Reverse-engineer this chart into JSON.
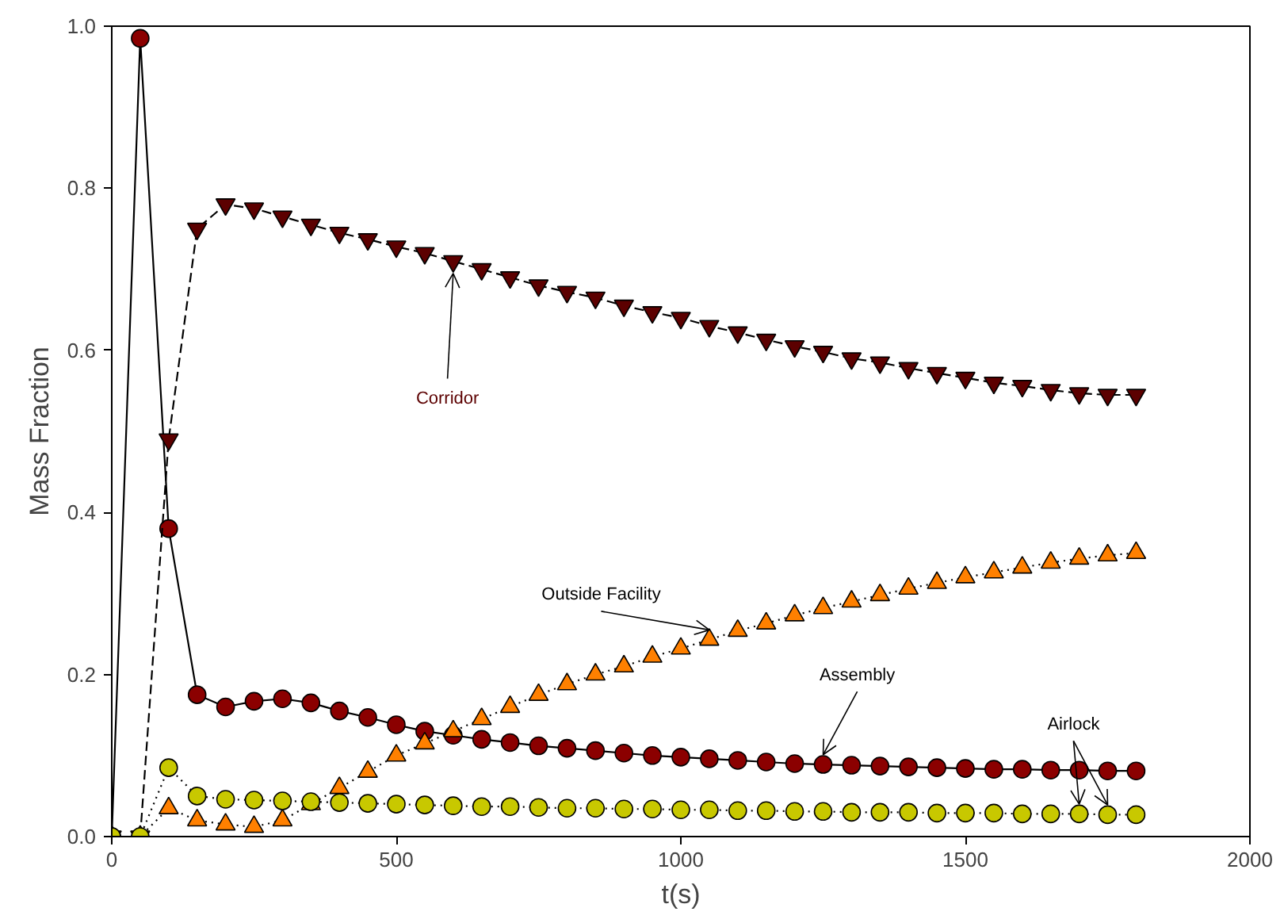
{
  "chart_data": {
    "type": "line",
    "xlabel": "t(s)",
    "ylabel": "Mass Fraction",
    "x": [
      0,
      50,
      100,
      150,
      200,
      250,
      300,
      350,
      400,
      450,
      500,
      550,
      600,
      650,
      700,
      750,
      800,
      850,
      900,
      950,
      1000,
      1050,
      1100,
      1150,
      1200,
      1250,
      1300,
      1350,
      1400,
      1450,
      1500,
      1550,
      1600,
      1650,
      1700,
      1750,
      1800
    ],
    "series": [
      {
        "name": "Assembly",
        "color": "#8b0000",
        "marker": "circle",
        "line_style": "solid",
        "values": [
          0,
          0.985,
          0.38,
          0.175,
          0.16,
          0.167,
          0.17,
          0.165,
          0.155,
          0.147,
          0.138,
          0.13,
          0.125,
          0.12,
          0.116,
          0.112,
          0.109,
          0.106,
          0.103,
          0.1,
          0.098,
          0.096,
          0.094,
          0.092,
          0.09,
          0.089,
          0.088,
          0.087,
          0.086,
          0.085,
          0.084,
          0.083,
          0.083,
          0.082,
          0.082,
          0.081,
          0.081
        ]
      },
      {
        "name": "Corridor",
        "color": "#5c0000",
        "marker": "triangle_down",
        "line_style": "dashed",
        "values": [
          0,
          0,
          0.49,
          0.75,
          0.78,
          0.775,
          0.765,
          0.755,
          0.745,
          0.737,
          0.728,
          0.72,
          0.71,
          0.7,
          0.69,
          0.68,
          0.672,
          0.665,
          0.655,
          0.647,
          0.64,
          0.63,
          0.622,
          0.613,
          0.605,
          0.598,
          0.59,
          0.585,
          0.578,
          0.572,
          0.566,
          0.56,
          0.556,
          0.551,
          0.547,
          0.545,
          0.545
        ]
      },
      {
        "name": "Outside Facility",
        "color": "#ff8000",
        "marker": "triangle",
        "line_style": "dotted",
        "values": [
          0,
          0,
          0.035,
          0.02,
          0.015,
          0.012,
          0.02,
          0.04,
          0.06,
          0.08,
          0.1,
          0.115,
          0.13,
          0.145,
          0.16,
          0.175,
          0.188,
          0.2,
          0.21,
          0.222,
          0.232,
          0.243,
          0.254,
          0.263,
          0.273,
          0.282,
          0.29,
          0.298,
          0.306,
          0.313,
          0.32,
          0.326,
          0.332,
          0.338,
          0.343,
          0.347,
          0.35
        ]
      },
      {
        "name": "Airlock",
        "color": "#c8c800",
        "marker": "circle",
        "line_style": "dotted",
        "values": [
          0,
          0,
          0.085,
          0.05,
          0.046,
          0.045,
          0.044,
          0.043,
          0.042,
          0.041,
          0.04,
          0.039,
          0.038,
          0.037,
          0.037,
          0.036,
          0.035,
          0.035,
          0.034,
          0.034,
          0.033,
          0.033,
          0.032,
          0.032,
          0.031,
          0.031,
          0.03,
          0.03,
          0.03,
          0.029,
          0.029,
          0.029,
          0.028,
          0.028,
          0.028,
          0.027,
          0.027
        ]
      }
    ],
    "xlim": [
      0,
      2000
    ],
    "xticks": [
      0,
      500,
      1000,
      1500,
      2000
    ],
    "ylim": [
      0,
      1
    ],
    "yticks": [
      {
        "value": 0,
        "label": "0.0"
      },
      {
        "value": 0.2,
        "label": "0.2"
      },
      {
        "value": 0.4,
        "label": "0.4"
      },
      {
        "value": 0.6,
        "label": "0.6"
      },
      {
        "value": 0.8,
        "label": "0.8"
      },
      {
        "value": 1,
        "label": "1.0"
      }
    ],
    "grid": false
  }
}
